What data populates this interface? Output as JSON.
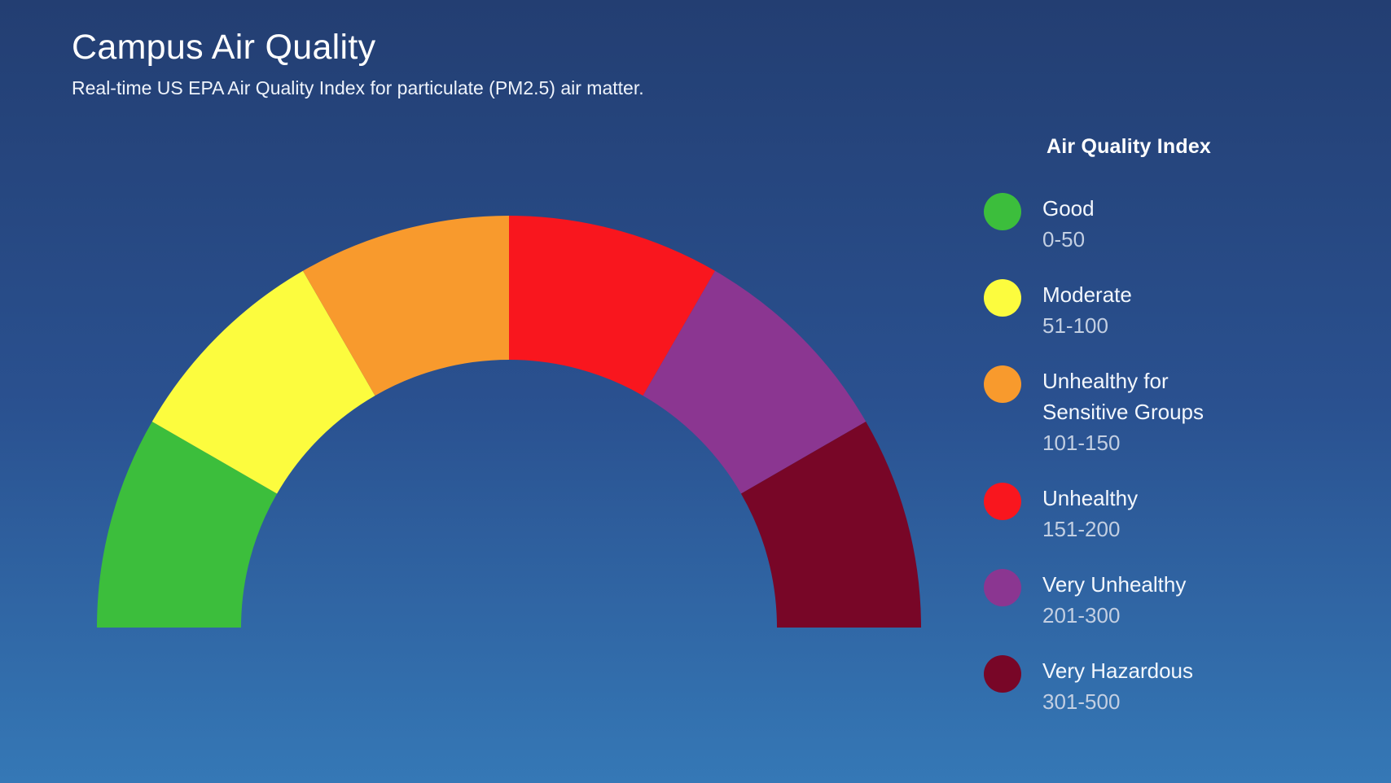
{
  "header": {
    "title": "Campus Air Quality",
    "subtitle": "Real-time US EPA Air Quality Index for particulate (PM2.5) air matter."
  },
  "legend": {
    "title": "Air Quality Index",
    "items": [
      {
        "label_lines": [
          "Good"
        ],
        "range": "0-50",
        "color": "#3cbe3c"
      },
      {
        "label_lines": [
          "Moderate"
        ],
        "range": "51-100",
        "color": "#fcfc3e"
      },
      {
        "label_lines": [
          "Unhealthy for",
          "Sensitive Groups"
        ],
        "range": "101-150",
        "color": "#f89a2d"
      },
      {
        "label_lines": [
          "Unhealthy"
        ],
        "range": "151-200",
        "color": "#f9161e"
      },
      {
        "label_lines": [
          "Very Unhealthy"
        ],
        "range": "201-300",
        "color": "#8b3691"
      },
      {
        "label_lines": [
          "Very Hazardous"
        ],
        "range": "301-500",
        "color": "#780627"
      }
    ]
  },
  "chart_data": {
    "type": "pie",
    "variant": "semicircular-gauge-donut",
    "title": "Air Quality Index",
    "start_angle_deg": 180,
    "end_angle_deg": 0,
    "equal_angle_segments": true,
    "inner_radius_ratio": 0.65,
    "legend_position": "right",
    "segments": [
      {
        "label": "Good",
        "range_label": "0-50",
        "range_min": 0,
        "range_max": 50,
        "angle_deg": 30,
        "color": "#3cbe3c"
      },
      {
        "label": "Moderate",
        "range_label": "51-100",
        "range_min": 51,
        "range_max": 100,
        "angle_deg": 30,
        "color": "#fcfc3e"
      },
      {
        "label": "Unhealthy for Sensitive Groups",
        "range_label": "101-150",
        "range_min": 101,
        "range_max": 150,
        "angle_deg": 30,
        "color": "#f89a2d"
      },
      {
        "label": "Unhealthy",
        "range_label": "151-200",
        "range_min": 151,
        "range_max": 200,
        "angle_deg": 30,
        "color": "#f9161e"
      },
      {
        "label": "Very Unhealthy",
        "range_label": "201-300",
        "range_min": 201,
        "range_max": 300,
        "angle_deg": 30,
        "color": "#8b3691"
      },
      {
        "label": "Very Hazardous",
        "range_label": "301-500",
        "range_min": 301,
        "range_max": 500,
        "angle_deg": 30,
        "color": "#780627"
      }
    ],
    "background": {
      "gradient_top": "#233e72",
      "gradient_bottom": "#3578b6"
    }
  }
}
